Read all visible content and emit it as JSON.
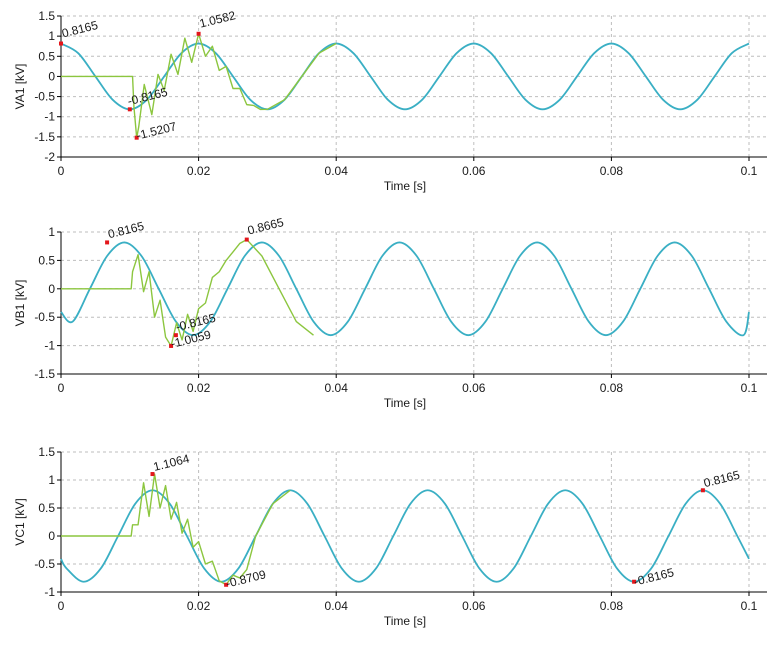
{
  "colors": {
    "steady_series": "#3AAFC4",
    "transient_series": "#8CC63F",
    "marker": "#E3161B",
    "grid": "#BEBEBE",
    "axis": "#000000"
  },
  "chart_data": [
    {
      "type": "line",
      "ylabel": "VA1 [kV]",
      "xlabel": "Time [s]",
      "xlim": [
        0,
        0.1
      ],
      "ylim": [
        -2,
        1.5
      ],
      "xticks": [
        0,
        0.02,
        0.04,
        0.06,
        0.08,
        0.1
      ],
      "xtick_labels": [
        "0",
        "0.02",
        "0.04",
        "0.06",
        "0.08",
        "0.1"
      ],
      "yticks": [
        -2,
        -1.5,
        -1,
        -0.5,
        0,
        0.5,
        1,
        1.5
      ],
      "ytick_labels": [
        "-2",
        "-1.5",
        "-1",
        "-0.5",
        "0",
        "0.5",
        "1",
        "1.5"
      ],
      "grid": "dashed",
      "series": [
        {
          "role": "steady",
          "color": "#3AAFC4",
          "x": [
            0,
            0.0025,
            0.005,
            0.0075,
            0.01,
            0.0125,
            0.015,
            0.0175,
            0.02,
            0.0225,
            0.025,
            0.0275,
            0.03,
            0.0325,
            0.035,
            0.0375,
            0.04,
            0.0425,
            0.045,
            0.0475,
            0.05,
            0.0525,
            0.055,
            0.0575,
            0.06,
            0.0625,
            0.065,
            0.0675,
            0.07,
            0.0725,
            0.075,
            0.0775,
            0.08,
            0.0825,
            0.085,
            0.0875,
            0.09,
            0.0925,
            0.095,
            0.0975,
            0.1
          ],
          "y": [
            0.8165,
            0.5773,
            0,
            -0.5773,
            -0.8165,
            -0.5773,
            0,
            0.5773,
            0.8165,
            0.5773,
            0,
            -0.5773,
            -0.8165,
            -0.5773,
            0,
            0.5773,
            0.8165,
            0.5773,
            0,
            -0.5773,
            -0.8165,
            -0.5773,
            0,
            0.5773,
            0.8165,
            0.5773,
            0,
            -0.5773,
            -0.8165,
            -0.5773,
            0,
            0.5773,
            0.8165,
            0.5773,
            0,
            -0.5773,
            -0.8165,
            -0.5773,
            0,
            0.5773,
            0.8165
          ]
        },
        {
          "role": "transient",
          "color": "#8CC63F",
          "x": [
            0,
            0.0104,
            0.0106,
            0.011,
            0.0113,
            0.0121,
            0.0132,
            0.0141,
            0.015,
            0.016,
            0.017,
            0.018,
            0.019,
            0.02,
            0.021,
            0.022,
            0.023,
            0.024,
            0.025,
            0.026,
            0.027,
            0.028,
            0.029,
            0.03,
            0.0325,
            0.035,
            0.0375,
            0.04
          ],
          "y": [
            0,
            0,
            -0.75,
            -1.5207,
            -1.25,
            -0.2,
            -0.95,
            0.05,
            -0.35,
            0.55,
            0.05,
            0.95,
            0.35,
            1.0582,
            0.5,
            0.75,
            0.15,
            0.25,
            -0.3,
            -0.3,
            -0.7,
            -0.72,
            -0.82,
            -0.8165,
            -0.5773,
            0,
            0.5773,
            0.8165
          ]
        }
      ],
      "markers": [
        {
          "x": 0,
          "y": 0.8165,
          "label": "0.8165"
        },
        {
          "x": 0.01,
          "y": -0.8165,
          "label": "-0.8165"
        },
        {
          "x": 0.011,
          "y": -1.5207,
          "label": "-1.5207"
        },
        {
          "x": 0.02,
          "y": 1.0582,
          "label": "1.0582"
        }
      ]
    },
    {
      "type": "line",
      "ylabel": "VB1 [kV]",
      "xlabel": "Time [s]",
      "xlim": [
        0,
        0.1
      ],
      "ylim": [
        -1.5,
        1
      ],
      "xticks": [
        0,
        0.02,
        0.04,
        0.06,
        0.08,
        0.1
      ],
      "xtick_labels": [
        "0",
        "0.02",
        "0.04",
        "0.06",
        "0.08",
        "0.1"
      ],
      "yticks": [
        -1.5,
        -1,
        -0.5,
        0,
        0.5,
        1
      ],
      "ytick_labels": [
        "-1.5",
        "-1",
        "-0.5",
        "0",
        "0.5",
        "1"
      ],
      "grid": "dashed",
      "series": [
        {
          "role": "steady",
          "color": "#3AAFC4",
          "x": [
            0,
            0.0017,
            0.0042,
            0.0067,
            0.0092,
            0.0117,
            0.0142,
            0.0167,
            0.0192,
            0.0217,
            0.0242,
            0.0267,
            0.0292,
            0.0317,
            0.0342,
            0.0367,
            0.0392,
            0.0417,
            0.0442,
            0.0467,
            0.0492,
            0.0517,
            0.0542,
            0.0567,
            0.0592,
            0.0617,
            0.0642,
            0.0667,
            0.0692,
            0.0717,
            0.0742,
            0.0767,
            0.0792,
            0.0817,
            0.0842,
            0.0867,
            0.0892,
            0.0917,
            0.0942,
            0.0967,
            0.0992,
            0.1
          ],
          "y": [
            -0.4082,
            -0.5773,
            0,
            0.5773,
            0.8165,
            0.5773,
            0,
            -0.5773,
            -0.8165,
            -0.5773,
            0,
            0.5773,
            0.8165,
            0.5773,
            0,
            -0.5773,
            -0.8165,
            -0.5773,
            0,
            0.5773,
            0.8165,
            0.5773,
            0,
            -0.5773,
            -0.8165,
            -0.5773,
            0,
            0.5773,
            0.8165,
            0.5773,
            0,
            -0.5773,
            -0.8165,
            -0.5773,
            0,
            0.5773,
            0.8165,
            0.5773,
            0,
            -0.5773,
            -0.8165,
            -0.4082
          ]
        },
        {
          "role": "transient",
          "color": "#8CC63F",
          "x": [
            0,
            0.0102,
            0.0104,
            0.0112,
            0.012,
            0.0128,
            0.0136,
            0.0144,
            0.0152,
            0.016,
            0.0168,
            0.0176,
            0.0184,
            0.0192,
            0.02,
            0.021,
            0.022,
            0.023,
            0.024,
            0.025,
            0.026,
            0.027,
            0.0292,
            0.0317,
            0.0342,
            0.0367
          ],
          "y": [
            0,
            0,
            0.3,
            0.6,
            -0.05,
            0.3,
            -0.5,
            -0.2,
            -0.85,
            -1.0059,
            -0.6,
            -0.9,
            -0.45,
            -0.75,
            -0.35,
            -0.25,
            0.2,
            0.3,
            0.5,
            0.65,
            0.8,
            0.8665,
            0.5773,
            0,
            -0.5773,
            -0.8165
          ]
        }
      ],
      "markers": [
        {
          "x": 0.0067,
          "y": 0.8165,
          "label": "0.8165"
        },
        {
          "x": 0.0167,
          "y": -0.8165,
          "label": "-0.8165"
        },
        {
          "x": 0.016,
          "y": -1.0059,
          "label": "-1.0059"
        },
        {
          "x": 0.027,
          "y": 0.8665,
          "label": "0.8665"
        }
      ]
    },
    {
      "type": "line",
      "ylabel": "VC1 [kV]",
      "xlabel": "Time [s]",
      "xlim": [
        0,
        0.1
      ],
      "ylim": [
        -1,
        1.5
      ],
      "xticks": [
        0,
        0.02,
        0.04,
        0.06,
        0.08,
        0.1
      ],
      "xtick_labels": [
        "0",
        "0.02",
        "0.04",
        "0.06",
        "0.08",
        "0.1"
      ],
      "yticks": [
        -1,
        -0.5,
        0,
        0.5,
        1,
        1.5
      ],
      "ytick_labels": [
        "-1",
        "-0.5",
        "0",
        "0.5",
        "1",
        "1.5"
      ],
      "grid": "dashed",
      "series": [
        {
          "role": "steady",
          "color": "#3AAFC4",
          "x": [
            0,
            0.0008,
            0.0033,
            0.0058,
            0.0083,
            0.0108,
            0.0133,
            0.0158,
            0.0183,
            0.0208,
            0.0233,
            0.0258,
            0.0283,
            0.0308,
            0.0333,
            0.0358,
            0.0383,
            0.0408,
            0.0433,
            0.0458,
            0.0483,
            0.0508,
            0.0533,
            0.0558,
            0.0583,
            0.0608,
            0.0633,
            0.0658,
            0.0683,
            0.0708,
            0.0733,
            0.0758,
            0.0783,
            0.0808,
            0.0833,
            0.0858,
            0.0883,
            0.0908,
            0.0933,
            0.0958,
            0.0983,
            0.1
          ],
          "y": [
            -0.4082,
            -0.5773,
            -0.8165,
            -0.5773,
            0,
            0.5773,
            0.8165,
            0.5773,
            0,
            -0.5773,
            -0.8165,
            -0.5773,
            0,
            0.5773,
            0.8165,
            0.5773,
            0,
            -0.5773,
            -0.8165,
            -0.5773,
            0,
            0.5773,
            0.8165,
            0.5773,
            0,
            -0.5773,
            -0.8165,
            -0.5773,
            0,
            0.5773,
            0.8165,
            0.5773,
            0,
            -0.5773,
            -0.8165,
            -0.5773,
            0,
            0.5773,
            0.8165,
            0.5773,
            0,
            -0.4082
          ]
        },
        {
          "role": "transient",
          "color": "#8CC63F",
          "x": [
            0,
            0.0102,
            0.0104,
            0.0112,
            0.012,
            0.0128,
            0.0136,
            0.0144,
            0.0152,
            0.016,
            0.0168,
            0.0176,
            0.0184,
            0.0192,
            0.02,
            0.021,
            0.022,
            0.023,
            0.024,
            0.025,
            0.026,
            0.027,
            0.0283,
            0.0308,
            0.0333
          ],
          "y": [
            0,
            0,
            0.2,
            0.2,
            0.95,
            0.35,
            1.1064,
            0.5,
            0.9,
            0.3,
            0.6,
            0.05,
            0.3,
            -0.2,
            -0.1,
            -0.5,
            -0.45,
            -0.8,
            -0.8709,
            -0.7,
            -0.75,
            -0.6,
            0,
            0.5773,
            0.8165
          ]
        }
      ],
      "markers": [
        {
          "x": 0.0133,
          "y": 1.1064,
          "label": "1.1064"
        },
        {
          "x": 0.024,
          "y": -0.8709,
          "label": "-0.8709"
        },
        {
          "x": 0.0833,
          "y": -0.8165,
          "label": "-0.8165"
        },
        {
          "x": 0.0933,
          "y": 0.8165,
          "label": "0.8165"
        }
      ]
    }
  ]
}
